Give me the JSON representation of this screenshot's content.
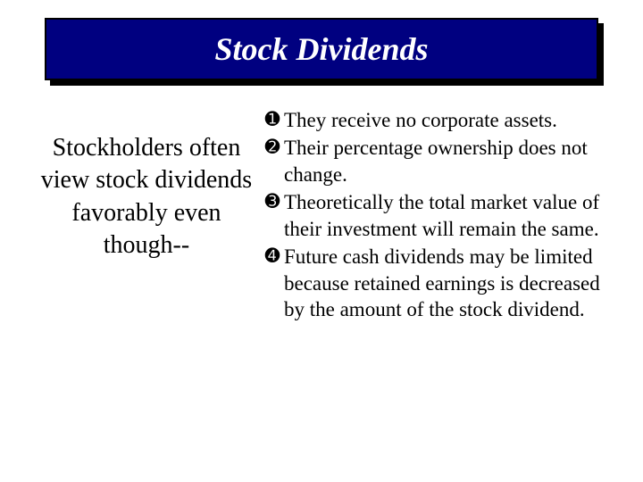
{
  "title": "Stock Dividends",
  "left_text": "Stockholders often view stock dividends favorably even though--",
  "bullets": [
    {
      "num": "➊",
      "text": "They receive no corporate assets."
    },
    {
      "num": "➋",
      "text": "Their percentage ownership does not change."
    },
    {
      "num": "➌",
      "text": "Theoretically the total market value of their investment will remain the same."
    },
    {
      "num": "➍",
      "text": "Future cash dividends may be limited because retained earnings is decreased by the amount of the stock dividend."
    }
  ],
  "colors": {
    "title_bg": "#000080",
    "title_text": "#ffffff",
    "shadow": "#000000",
    "body_bg": "#ffffff",
    "body_text": "#000000"
  },
  "fonts": {
    "title_size": 36,
    "left_size": 28,
    "bullet_size": 23
  }
}
